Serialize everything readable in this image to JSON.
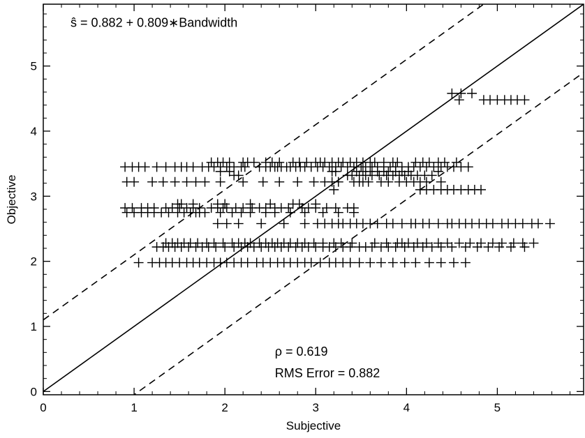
{
  "chart_data": {
    "type": "scatter",
    "title": "",
    "xlabel": "Subjective",
    "ylabel": "Objective",
    "xlim": [
      0,
      5.95
    ],
    "ylim": [
      -0.05,
      5.95
    ],
    "x_ticks": [
      "0",
      "1",
      "2",
      "3",
      "4",
      "5"
    ],
    "y_ticks": [
      "0",
      "1",
      "2",
      "3",
      "4",
      "5"
    ],
    "grid": false,
    "annotations": {
      "equation": "ŝ = 0.882 + 0.809∗Bandwidth",
      "rho": "ρ = 0.619",
      "rms": "RMS Error = 0.882"
    },
    "reference_lines": [
      {
        "style": "solid",
        "intercept": 0,
        "slope": 1
      },
      {
        "style": "dashed",
        "intercept": 1.1,
        "slope": 1
      },
      {
        "style": "dashed",
        "intercept": -1.05,
        "slope": 1
      }
    ],
    "marker": "plus",
    "series": [
      {
        "y": 3.45,
        "x": [
          0.9,
          0.98,
          1.05,
          1.12,
          1.25,
          1.35,
          1.45,
          1.52,
          1.58,
          1.65,
          1.75,
          1.82,
          1.88,
          1.95,
          2.02,
          2.1,
          2.18,
          2.22,
          2.38,
          2.45,
          2.5,
          2.55,
          2.58,
          2.62,
          2.68,
          2.72,
          2.78,
          2.83,
          2.88,
          2.95,
          3.02,
          3.08,
          3.15,
          3.22,
          3.28,
          3.35,
          3.42,
          3.5,
          3.55,
          3.62,
          3.68,
          3.75,
          3.82,
          3.88,
          3.95,
          4.02,
          4.08,
          4.15,
          4.22,
          4.3,
          4.38,
          4.45,
          4.52,
          4.6,
          4.68
        ]
      },
      {
        "y": 3.52,
        "x": [
          1.85,
          1.92,
          1.98,
          2.05,
          2.2,
          2.25,
          2.32,
          2.45,
          2.52,
          2.6,
          2.75,
          2.82,
          2.9,
          3.0,
          3.05,
          3.1,
          3.18,
          3.25,
          3.3,
          3.38,
          3.45,
          3.52,
          3.6,
          3.65,
          3.75,
          3.85,
          3.9,
          4.1,
          4.18,
          4.25,
          4.35,
          4.42,
          4.55
        ]
      },
      {
        "y": 3.32,
        "x": [
          2.1,
          2.15,
          3.35,
          3.4,
          3.48,
          3.55,
          3.62,
          3.7,
          3.78,
          3.85,
          3.92,
          3.98,
          4.05,
          4.12,
          4.2,
          4.28
        ]
      },
      {
        "y": 3.38,
        "x": [
          1.95,
          2.05,
          3.18,
          3.22,
          3.45,
          3.52,
          3.6,
          3.68,
          3.75,
          3.8,
          3.88,
          3.95,
          4.02,
          4.35
        ]
      },
      {
        "y": 3.22,
        "x": [
          0.92,
          1.0,
          1.2,
          1.32,
          1.45,
          1.58,
          1.68,
          1.78,
          1.95,
          2.2,
          2.42,
          2.6,
          2.8,
          2.98,
          3.1,
          3.18,
          3.25,
          3.42,
          3.48,
          3.52,
          3.58,
          3.72,
          3.8,
          3.92,
          4.0,
          4.08,
          4.15,
          4.22,
          4.38
        ]
      },
      {
        "y": 3.1,
        "x": [
          3.2,
          4.15,
          4.22,
          4.3,
          4.38,
          4.45,
          4.52,
          4.6,
          4.68,
          4.75,
          4.82
        ]
      },
      {
        "y": 2.82,
        "x": [
          0.9,
          0.98,
          1.08,
          1.15,
          1.22,
          1.35,
          1.42,
          1.5,
          1.58,
          1.65,
          1.72,
          1.85,
          1.92,
          1.98,
          2.02,
          2.12,
          2.2,
          2.3,
          2.38,
          2.45,
          2.55,
          2.62,
          2.7,
          2.85,
          2.92,
          3.0,
          3.12,
          3.22,
          3.35,
          3.42
        ]
      },
      {
        "y": 2.88,
        "x": [
          1.48,
          1.52,
          1.65,
          1.92,
          2.0,
          2.28,
          2.5,
          2.75,
          2.82,
          3.0
        ]
      },
      {
        "y": 2.75,
        "x": [
          0.92,
          1.0,
          1.08,
          1.15,
          1.22,
          1.3,
          1.38,
          1.48,
          1.55,
          1.62,
          1.68,
          1.72,
          1.78,
          1.95,
          2.08,
          2.18,
          2.28,
          2.45,
          2.55,
          2.72,
          2.88,
          3.08,
          3.25,
          3.42
        ]
      },
      {
        "y": 2.58,
        "x": [
          1.92,
          2.02,
          2.15,
          2.4,
          2.65,
          2.88,
          3.02,
          3.1,
          3.18,
          3.25,
          3.3,
          3.38,
          3.45,
          3.52,
          3.6,
          3.68,
          3.78,
          3.85,
          3.95,
          4.05,
          4.1,
          4.18,
          4.25,
          4.35,
          4.45,
          4.5,
          4.58,
          4.65,
          4.72,
          4.8,
          4.88,
          4.95,
          5.05,
          5.12,
          5.2,
          5.28,
          5.38,
          5.45,
          5.58
        ]
      },
      {
        "y": 2.28,
        "x": [
          1.35,
          1.42,
          1.48,
          1.55,
          1.62,
          1.7,
          1.8,
          1.88,
          1.98,
          2.08,
          2.15,
          2.22,
          2.28,
          2.38,
          2.45,
          2.52,
          2.58,
          2.65,
          2.72,
          2.8,
          2.88,
          2.98,
          3.08,
          3.2,
          3.28,
          3.4,
          3.65,
          3.78,
          3.9,
          3.95,
          4.02,
          4.12,
          4.22,
          4.35,
          4.45,
          4.58,
          4.7,
          4.82,
          4.95,
          5.05,
          5.18,
          5.28,
          5.4
        ]
      },
      {
        "y": 2.22,
        "x": [
          1.25,
          1.32,
          1.38,
          1.45,
          1.52,
          1.6,
          1.68,
          1.75,
          1.82,
          1.9,
          2.0,
          2.1,
          2.18,
          2.25,
          2.32,
          2.4,
          2.48,
          2.55,
          2.62,
          2.7,
          2.78,
          2.85,
          2.92,
          3.0,
          3.08,
          3.15,
          3.22,
          3.3,
          3.38,
          3.48,
          3.55,
          3.62,
          3.72,
          3.8,
          3.88,
          3.98,
          4.08,
          4.18,
          4.28,
          4.38,
          4.5,
          4.65,
          4.78,
          4.9,
          5.02,
          5.15,
          5.3
        ]
      },
      {
        "y": 1.98,
        "x": [
          1.05,
          1.2,
          1.28,
          1.35,
          1.42,
          1.5,
          1.58,
          1.65,
          1.72,
          1.8,
          1.88,
          1.95,
          2.02,
          2.1,
          2.18,
          2.25,
          2.35,
          2.42,
          2.5,
          2.58,
          2.65,
          2.72,
          2.8,
          2.88,
          2.95,
          3.05,
          3.15,
          3.22,
          3.3,
          3.38,
          3.48,
          3.6,
          3.72,
          3.85,
          3.98,
          4.1,
          4.25,
          4.38,
          4.52,
          4.65
        ]
      },
      {
        "y": 4.58,
        "x": [
          4.5,
          4.6,
          4.72
        ]
      },
      {
        "y": 4.48,
        "x": [
          4.58,
          4.85,
          4.92,
          5.0,
          5.08,
          5.15,
          5.22,
          5.3
        ]
      }
    ]
  }
}
